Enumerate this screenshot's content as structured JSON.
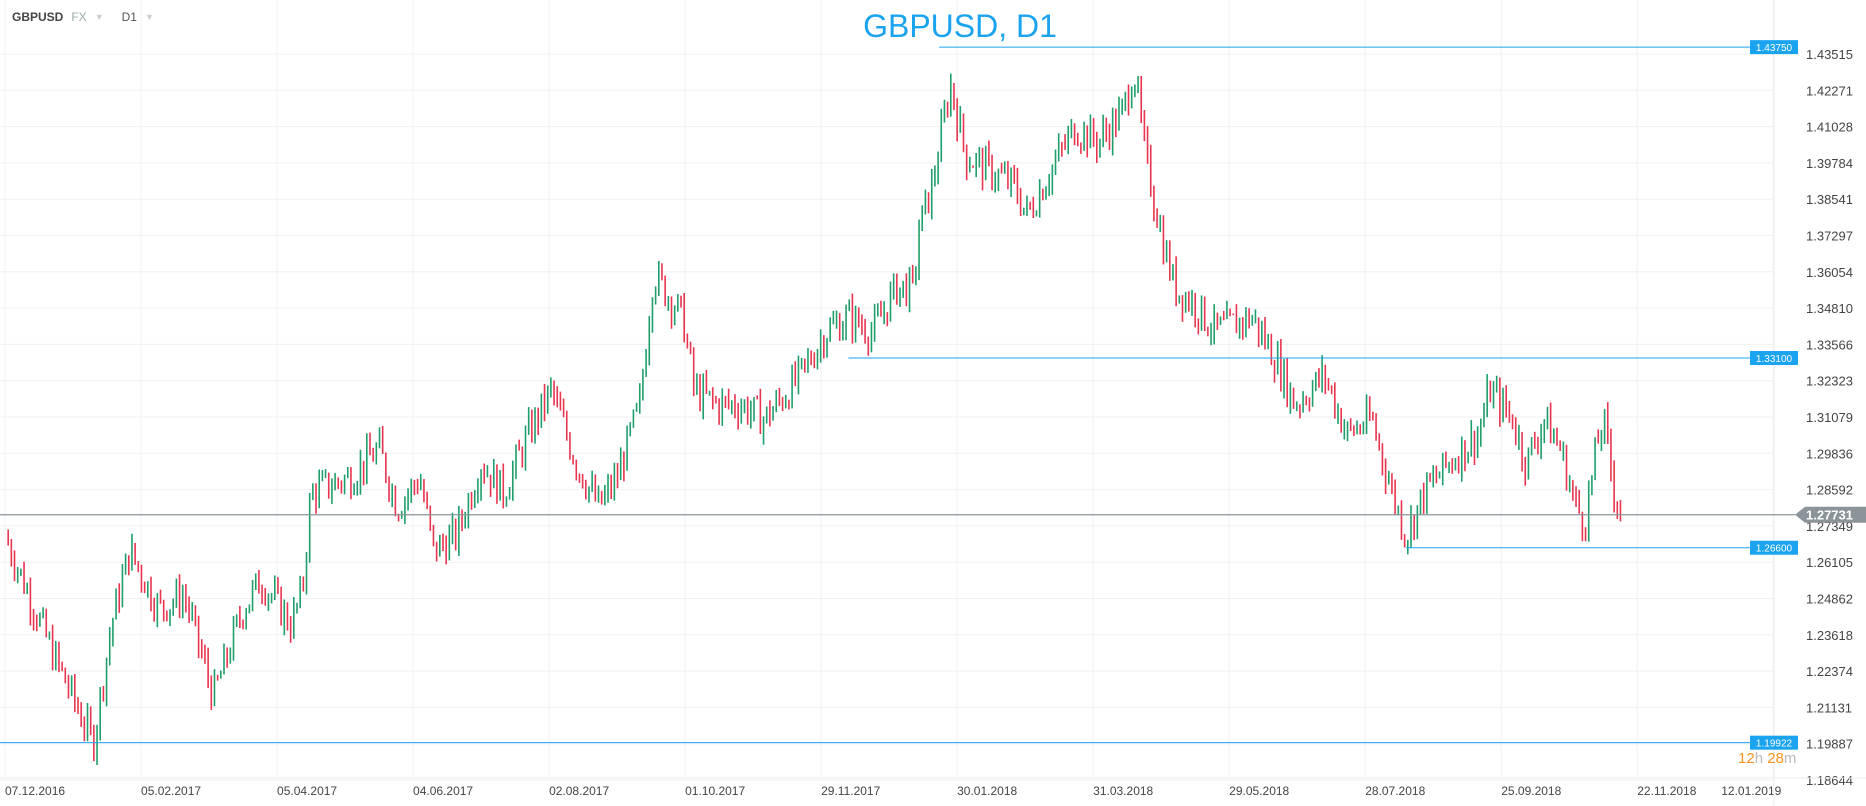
{
  "header": {
    "symbol": "GBPUSD",
    "market": "FX",
    "timeframe": "D1"
  },
  "timer": {
    "hours": "12",
    "h": "h",
    "minutes": "28",
    "m": "m"
  },
  "chart_data": {
    "type": "ohlc",
    "title": "GBPUSD, D1",
    "colors": {
      "up": "#1e9e6a",
      "down": "#e8344e",
      "level": "#1aa3ee",
      "current": "#8a9499"
    },
    "y_ticks": [
      "1.43515",
      "1.42271",
      "1.41028",
      "1.39784",
      "1.38541",
      "1.37297",
      "1.36054",
      "1.34810",
      "1.33566",
      "1.32323",
      "1.31079",
      "1.29836",
      "1.28592",
      "1.27349",
      "1.26105",
      "1.24862",
      "1.23618",
      "1.22374",
      "1.21131",
      "1.19887",
      "1.18644"
    ],
    "ylim": [
      1.18644,
      1.43515
    ],
    "x_ticks": [
      "07.12.2016",
      "05.02.2017",
      "05.04.2017",
      "04.06.2017",
      "02.08.2017",
      "01.10.2017",
      "29.11.2017",
      "30.01.2018",
      "31.03.2018",
      "29.05.2018",
      "28.07.2018",
      "25.09.2018",
      "22.11.2018",
      "12.01.2019"
    ],
    "x_tick_days": [
      0,
      60,
      120,
      180,
      240,
      300,
      360,
      420,
      480,
      540,
      600,
      660,
      720,
      780
    ],
    "close_path_days_price": [
      [
        0,
        1.27
      ],
      [
        21,
        1.23
      ],
      [
        39,
        1.199
      ],
      [
        47,
        1.24
      ],
      [
        55,
        1.265
      ],
      [
        68,
        1.245
      ],
      [
        79,
        1.25
      ],
      [
        92,
        1.215
      ],
      [
        105,
        1.245
      ],
      [
        113,
        1.255
      ],
      [
        126,
        1.24
      ],
      [
        131,
        1.25
      ],
      [
        135,
        1.285
      ],
      [
        152,
        1.29
      ],
      [
        165,
        1.3
      ],
      [
        173,
        1.28
      ],
      [
        183,
        1.29
      ],
      [
        189,
        1.265
      ],
      [
        199,
        1.27
      ],
      [
        210,
        1.295
      ],
      [
        220,
        1.285
      ],
      [
        231,
        1.305
      ],
      [
        241,
        1.32
      ],
      [
        252,
        1.295
      ],
      [
        262,
        1.28
      ],
      [
        270,
        1.29
      ],
      [
        280,
        1.315
      ],
      [
        286,
        1.36
      ],
      [
        299,
        1.345
      ],
      [
        304,
        1.32
      ],
      [
        314,
        1.315
      ],
      [
        325,
        1.315
      ],
      [
        335,
        1.31
      ],
      [
        351,
        1.325
      ],
      [
        362,
        1.34
      ],
      [
        372,
        1.345
      ],
      [
        383,
        1.34
      ],
      [
        393,
        1.355
      ],
      [
        401,
        1.355
      ],
      [
        403,
        1.375
      ],
      [
        409,
        1.39
      ],
      [
        417,
        1.425
      ],
      [
        424,
        1.4
      ],
      [
        435,
        1.395
      ],
      [
        445,
        1.39
      ],
      [
        451,
        1.38
      ],
      [
        461,
        1.395
      ],
      [
        472,
        1.41
      ],
      [
        482,
        1.405
      ],
      [
        493,
        1.415
      ],
      [
        498,
        1.43
      ],
      [
        503,
        1.4
      ],
      [
        511,
        1.37
      ],
      [
        516,
        1.355
      ],
      [
        524,
        1.35
      ],
      [
        534,
        1.34
      ],
      [
        550,
        1.345
      ],
      [
        561,
        1.33
      ],
      [
        569,
        1.315
      ],
      [
        582,
        1.325
      ],
      [
        592,
        1.305
      ],
      [
        603,
        1.31
      ],
      [
        610,
        1.29
      ],
      [
        618,
        1.27
      ],
      [
        626,
        1.285
      ],
      [
        637,
        1.295
      ],
      [
        650,
        1.305
      ],
      [
        655,
        1.32
      ],
      [
        665,
        1.31
      ],
      [
        671,
        1.295
      ],
      [
        679,
        1.31
      ],
      [
        686,
        1.3
      ],
      [
        693,
        1.28
      ],
      [
        697,
        1.275
      ],
      [
        702,
        1.3
      ],
      [
        705,
        1.31
      ],
      [
        710,
        1.285
      ],
      [
        713,
        1.27731
      ]
    ],
    "levels": [
      {
        "label": "1.43750",
        "value": 1.4375,
        "from_day": 412
      },
      {
        "label": "1.33100",
        "value": 1.331,
        "from_day": 372
      },
      {
        "label": "1.26600",
        "value": 1.266,
        "from_day": 618
      },
      {
        "label": "1.19922",
        "value": 1.19922,
        "from_day": -3
      }
    ],
    "current": {
      "label": "1.27731",
      "value": 1.27731
    }
  }
}
